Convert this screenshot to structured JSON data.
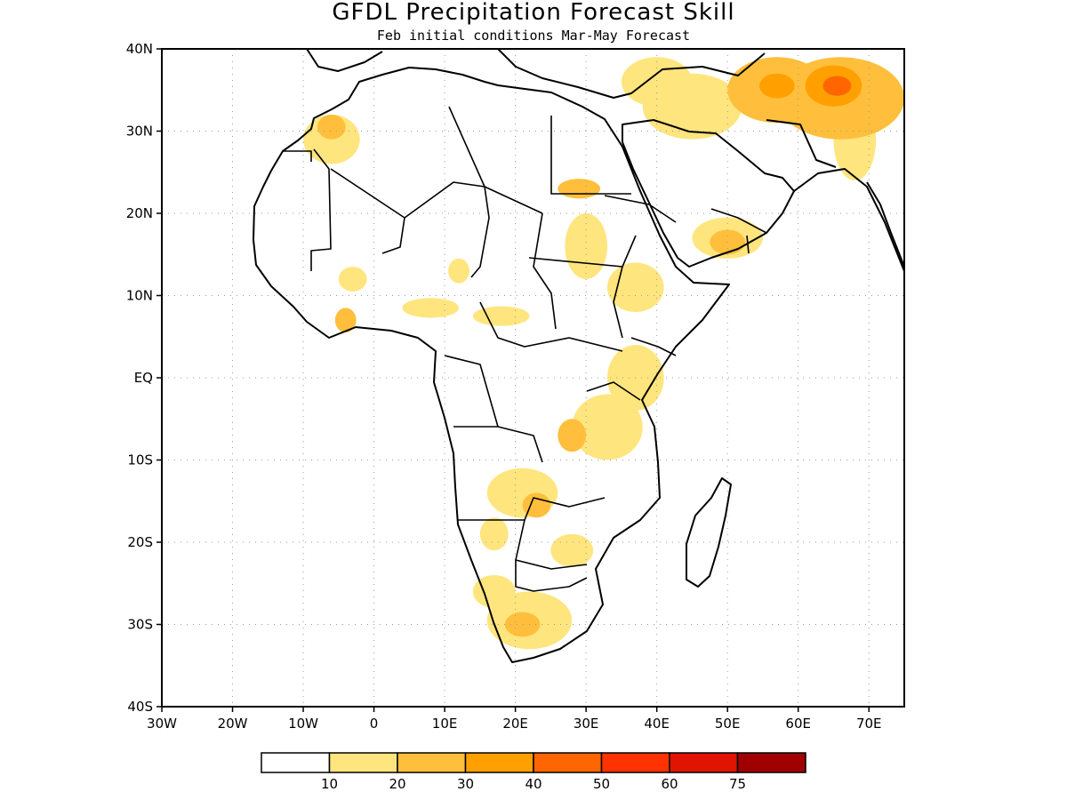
{
  "header": {
    "title": "GFDL Precipitation Forecast Skill",
    "subtitle": "Feb initial conditions  Mar-May Forecast"
  },
  "map": {
    "lon_range": [
      -30,
      75
    ],
    "lat_range": [
      -40,
      40
    ],
    "lon_ticks": [
      {
        "value": -30,
        "label": "30W"
      },
      {
        "value": -20,
        "label": "20W"
      },
      {
        "value": -10,
        "label": "10W"
      },
      {
        "value": 0,
        "label": "0"
      },
      {
        "value": 10,
        "label": "10E"
      },
      {
        "value": 20,
        "label": "20E"
      },
      {
        "value": 30,
        "label": "30E"
      },
      {
        "value": 40,
        "label": "40E"
      },
      {
        "value": 50,
        "label": "50E"
      },
      {
        "value": 60,
        "label": "60E"
      },
      {
        "value": 70,
        "label": "70E"
      }
    ],
    "lat_ticks": [
      {
        "value": 40,
        "label": "40N"
      },
      {
        "value": 30,
        "label": "30N"
      },
      {
        "value": 20,
        "label": "20N"
      },
      {
        "value": 10,
        "label": "10N"
      },
      {
        "value": 0,
        "label": "EQ"
      },
      {
        "value": -10,
        "label": "10S"
      },
      {
        "value": -20,
        "label": "20S"
      },
      {
        "value": -30,
        "label": "30S"
      },
      {
        "value": -40,
        "label": "40S"
      }
    ],
    "grid": true,
    "skill_regions": [
      {
        "lon": -6,
        "lat": 29,
        "level": 1,
        "rx": 4,
        "ry": 3
      },
      {
        "lon": -6,
        "lat": 30.5,
        "level": 2,
        "rx": 2,
        "ry": 1.5
      },
      {
        "lon": -3,
        "lat": 12,
        "level": 1,
        "rx": 2,
        "ry": 1.5
      },
      {
        "lon": -4,
        "lat": 7,
        "level": 2,
        "rx": 1.5,
        "ry": 1.5
      },
      {
        "lon": 8,
        "lat": 8.5,
        "level": 1,
        "rx": 4,
        "ry": 1.2
      },
      {
        "lon": 18,
        "lat": 7.5,
        "level": 1,
        "rx": 4,
        "ry": 1.2
      },
      {
        "lon": 12,
        "lat": 13,
        "level": 1,
        "rx": 1.5,
        "ry": 1.5
      },
      {
        "lon": 29,
        "lat": 23,
        "level": 2,
        "rx": 3,
        "ry": 1.2
      },
      {
        "lon": 30,
        "lat": 16,
        "level": 1,
        "rx": 3,
        "ry": 4
      },
      {
        "lon": 37,
        "lat": 11,
        "level": 1,
        "rx": 4,
        "ry": 3
      },
      {
        "lon": 37,
        "lat": 0,
        "level": 1,
        "rx": 4,
        "ry": 4
      },
      {
        "lon": 33,
        "lat": -6,
        "level": 1,
        "rx": 5,
        "ry": 4
      },
      {
        "lon": 28,
        "lat": -7,
        "level": 2,
        "rx": 2,
        "ry": 2
      },
      {
        "lon": 21,
        "lat": -14,
        "level": 1,
        "rx": 5,
        "ry": 3
      },
      {
        "lon": 23,
        "lat": -15.5,
        "level": 2,
        "rx": 2,
        "ry": 1.5
      },
      {
        "lon": 17,
        "lat": -19,
        "level": 1,
        "rx": 2,
        "ry": 2
      },
      {
        "lon": 28,
        "lat": -21,
        "level": 1,
        "rx": 3,
        "ry": 2
      },
      {
        "lon": 17,
        "lat": -26,
        "level": 1,
        "rx": 3,
        "ry": 2
      },
      {
        "lon": 22,
        "lat": -29.5,
        "level": 1,
        "rx": 6,
        "ry": 3.5
      },
      {
        "lon": 21,
        "lat": -30,
        "level": 2,
        "rx": 2.5,
        "ry": 1.5
      },
      {
        "lon": 50,
        "lat": 17,
        "level": 1,
        "rx": 5,
        "ry": 2.5
      },
      {
        "lon": 50,
        "lat": 16.5,
        "level": 2,
        "rx": 2.5,
        "ry": 1.5
      },
      {
        "lon": 45,
        "lat": 33,
        "level": 1,
        "rx": 7,
        "ry": 4
      },
      {
        "lon": 40,
        "lat": 36,
        "level": 1,
        "rx": 5,
        "ry": 3
      },
      {
        "lon": 57,
        "lat": 35,
        "level": 2,
        "rx": 7,
        "ry": 4
      },
      {
        "lon": 57,
        "lat": 35.5,
        "level": 3,
        "rx": 2.5,
        "ry": 1.5
      },
      {
        "lon": 66,
        "lat": 34,
        "level": 2,
        "rx": 9,
        "ry": 5
      },
      {
        "lon": 65,
        "lat": 35.5,
        "level": 3,
        "rx": 4,
        "ry": 2.5
      },
      {
        "lon": 65.5,
        "lat": 35.5,
        "level": 4,
        "rx": 2,
        "ry": 1.2
      },
      {
        "lon": 68,
        "lat": 29,
        "level": 1,
        "rx": 3,
        "ry": 5
      }
    ]
  },
  "legend": {
    "levels": [
      10,
      20,
      30,
      40,
      50,
      60,
      75
    ],
    "colors": [
      "#ffffff",
      "#ffe57e",
      "#ffbf3c",
      "#ffa000",
      "#ff6500",
      "#ff3200",
      "#e01400",
      "#a00000"
    ]
  }
}
